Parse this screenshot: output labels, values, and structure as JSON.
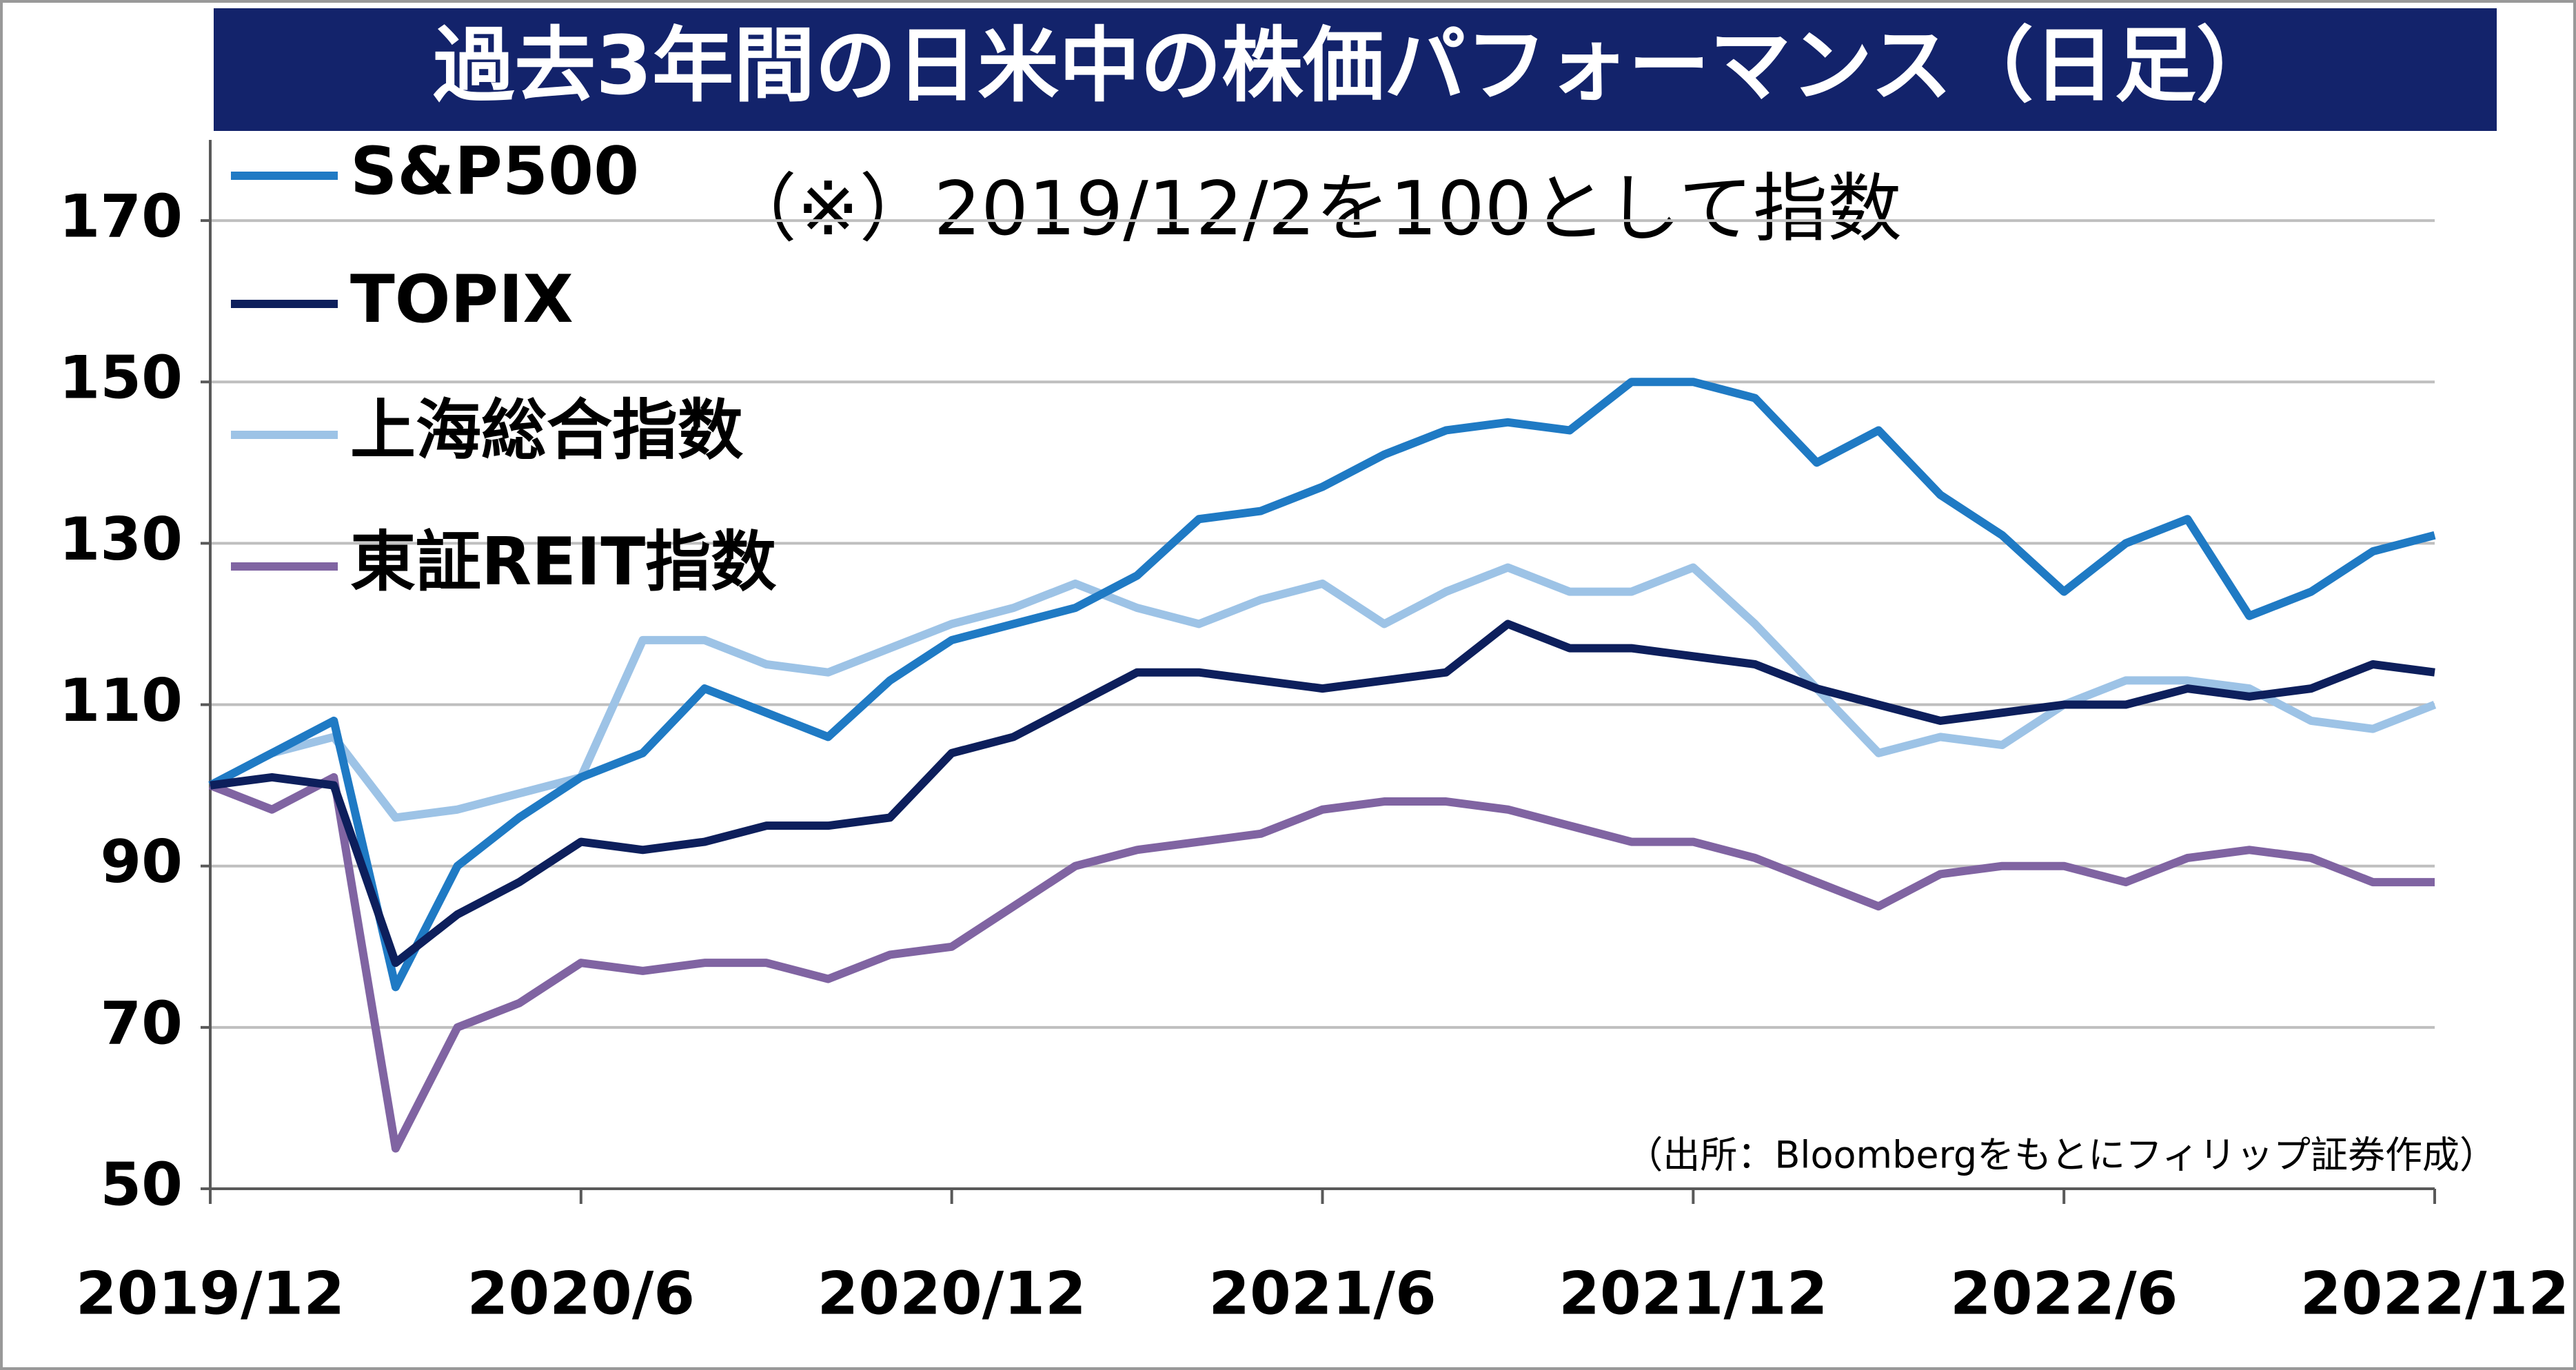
{
  "chart_data": {
    "type": "line",
    "title": "過去3年間の日米中の株価パフォーマンス（日足）",
    "annotations": [
      "（※）2019/12/2を100として指数",
      "（出所：Bloombergをもとにフィリップ証券作成）"
    ],
    "x": [
      "2019/12",
      "2020/1",
      "2020/2",
      "2020/3",
      "2020/4",
      "2020/5",
      "2020/6",
      "2020/7",
      "2020/8",
      "2020/9",
      "2020/10",
      "2020/11",
      "2020/12",
      "2021/1",
      "2021/2",
      "2021/3",
      "2021/4",
      "2021/5",
      "2021/6",
      "2021/7",
      "2021/8",
      "2021/9",
      "2021/10",
      "2021/11",
      "2021/12",
      "2022/1",
      "2022/2",
      "2022/3",
      "2022/4",
      "2022/5",
      "2022/6",
      "2022/7",
      "2022/8",
      "2022/9",
      "2022/10",
      "2022/11",
      "2022/12"
    ],
    "series": [
      {
        "name": "S&P500",
        "color": "#1f7ac4",
        "values": [
          100,
          104,
          108,
          75,
          90,
          96,
          101,
          104,
          112,
          109,
          106,
          113,
          118,
          120,
          122,
          126,
          133,
          134,
          137,
          141,
          144,
          145,
          144,
          150,
          150,
          148,
          140,
          144,
          136,
          131,
          124,
          130,
          133,
          121,
          124,
          129,
          131
        ]
      },
      {
        "name": "TOPIX",
        "color": "#0d1f5c",
        "values": [
          100,
          101,
          100,
          78,
          84,
          88,
          93,
          92,
          93,
          95,
          95,
          96,
          104,
          106,
          110,
          114,
          114,
          113,
          112,
          113,
          114,
          120,
          117,
          117,
          116,
          115,
          112,
          110,
          108,
          109,
          110,
          110,
          112,
          111,
          112,
          115,
          114
        ]
      },
      {
        "name": "上海総合指数",
        "color": "#9dc3e6",
        "values": [
          100,
          104,
          106,
          96,
          97,
          99,
          101,
          118,
          118,
          115,
          114,
          117,
          120,
          122,
          125,
          122,
          120,
          123,
          125,
          120,
          124,
          127,
          124,
          124,
          127,
          120,
          112,
          104,
          106,
          105,
          110,
          113,
          113,
          112,
          108,
          107,
          110
        ]
      },
      {
        "name": "東証REIT指数",
        "color": "#8064a2",
        "values": [
          100,
          97,
          101,
          55,
          70,
          73,
          78,
          77,
          78,
          78,
          76,
          79,
          80,
          85,
          90,
          92,
          93,
          94,
          97,
          98,
          98,
          97,
          95,
          93,
          93,
          91,
          88,
          85,
          89,
          90,
          90,
          88,
          91,
          92,
          91,
          88,
          88
        ]
      }
    ],
    "ylim": [
      50,
      180
    ],
    "yticks": [
      50,
      70,
      90,
      110,
      130,
      150,
      170
    ],
    "xticks": [
      "2019/12",
      "2020/6",
      "2020/12",
      "2021/6",
      "2021/12",
      "2022/6",
      "2022/12"
    ],
    "grid": true
  }
}
